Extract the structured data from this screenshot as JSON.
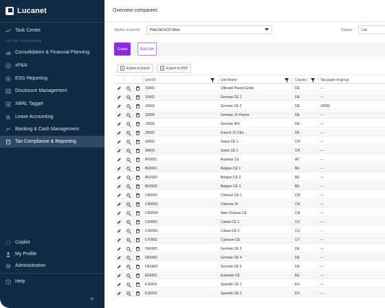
{
  "brand": {
    "name": "Lucanet"
  },
  "sidebar": {
    "top_item": {
      "label": "Task Center",
      "icon": "pulse-icon"
    },
    "section_label": "ACTIVE SOLUTIONS",
    "items": [
      {
        "label": "Consolidation & Financial Planning",
        "icon": "bar-chart-icon"
      },
      {
        "label": "xP&A",
        "icon": "dollar-icon"
      },
      {
        "label": "ESG Reporting",
        "icon": "leaf-icon"
      },
      {
        "label": "Disclosure Management",
        "icon": "document-icon"
      },
      {
        "label": "XBRL Tagger",
        "icon": "tag-icon"
      },
      {
        "label": "Lease Accounting",
        "icon": "lease-icon"
      },
      {
        "label": "Banking & Cash Management",
        "icon": "bank-icon"
      },
      {
        "label": "Tax Compliance & Reporting",
        "icon": "tax-icon",
        "active": true
      }
    ],
    "bottom_items": [
      {
        "label": "Copilot",
        "icon": "sparkle-icon"
      },
      {
        "label": "My Profile",
        "icon": "user-icon"
      },
      {
        "label": "Administration",
        "icon": "gear-icon"
      }
    ],
    "help": {
      "label": "Help",
      "icon": "help-icon"
    },
    "collapse_glyph": "«"
  },
  "main": {
    "title": "Overview companies",
    "filters": {
      "period_label": "Applies to period:",
      "period_value": "Pillar2&CbCR-Main",
      "display_label": "Display:",
      "display_value": "List"
    },
    "toolbar": {
      "create_label": "Create",
      "bulk_label": "Bulk Edit"
    },
    "exports": {
      "excel_label": "Export to Excel",
      "pdf_label": "Export to PDF"
    },
    "columns": {
      "unit_id": "Unit-ID",
      "unit_name": "Unit-Name",
      "country": "Country",
      "tax_payer": "Tax payer of group"
    },
    "rows": [
      {
        "unit_id": "10000",
        "unit_name": "Ultimate Parent Entity",
        "country": "DE",
        "tax_payer": "---"
      },
      {
        "unit_id": "10002",
        "unit_name": "German CE 1",
        "country": "DE",
        "tax_payer": "---"
      },
      {
        "unit_id": "10003",
        "unit_name": "German CE 2",
        "country": "DE",
        "tax_payer": "10000"
      },
      {
        "unit_id": "10004",
        "unit_name": "German JV Parent",
        "country": "DE",
        "tax_payer": "---"
      },
      {
        "unit_id": "10005",
        "unit_name": "German INV",
        "country": "DE",
        "tax_payer": "---"
      },
      {
        "unit_id": "20002",
        "unit_name": "French JV CEs",
        "country": "FR",
        "tax_payer": "---"
      },
      {
        "unit_id": "30002",
        "unit_name": "Swiss CE 1",
        "country": "CH",
        "tax_payer": "---"
      },
      {
        "unit_id": "30003",
        "unit_name": "Swiss CE 2",
        "country": "CH",
        "tax_payer": "---"
      },
      {
        "unit_id": "AT0001",
        "unit_name": "Austrian CE",
        "country": "AT",
        "tax_payer": "---"
      },
      {
        "unit_id": "BE0001",
        "unit_name": "Belgian CE 1",
        "country": "BE",
        "tax_payer": "---"
      },
      {
        "unit_id": "BE0002",
        "unit_name": "Belgian CE 2",
        "country": "BE",
        "tax_payer": "---"
      },
      {
        "unit_id": "BE0003",
        "unit_name": "Belgian CE 3",
        "country": "BE",
        "tax_payer": "---"
      },
      {
        "unit_id": "CN0001",
        "unit_name": "Chinese CE 1",
        "country": "CN",
        "tax_payer": "---"
      },
      {
        "unit_id": "CN0003",
        "unit_name": "Chinese JV",
        "country": "CN",
        "tax_payer": "---"
      },
      {
        "unit_id": "CN0004",
        "unit_name": "New Chinese CE",
        "country": "CN",
        "tax_payer": "---"
      },
      {
        "unit_id": "CU0001",
        "unit_name": "Cuban CE 1",
        "country": "CU",
        "tax_payer": "---"
      },
      {
        "unit_id": "CU0002",
        "unit_name": "Cuban CE 2",
        "country": "CU",
        "tax_payer": "---"
      },
      {
        "unit_id": "CY0001",
        "unit_name": "Cyprican CE",
        "country": "CY",
        "tax_payer": "---"
      },
      {
        "unit_id": "DE0001",
        "unit_name": "German CE 3",
        "country": "DE",
        "tax_payer": "---"
      },
      {
        "unit_id": "DE0002",
        "unit_name": "German CE 4",
        "country": "DE",
        "tax_payer": "---"
      },
      {
        "unit_id": "DE0003",
        "unit_name": "German CE 5",
        "country": "DE",
        "tax_payer": "---"
      },
      {
        "unit_id": "EE0001",
        "unit_name": "Estonian CE",
        "country": "EE",
        "tax_payer": "---"
      },
      {
        "unit_id": "ES0001",
        "unit_name": "Spanish CE 1",
        "country": "ES",
        "tax_payer": "---"
      },
      {
        "unit_id": "ES0002",
        "unit_name": "Spanish CE 2",
        "country": "ES",
        "tax_payer": "---"
      }
    ]
  }
}
